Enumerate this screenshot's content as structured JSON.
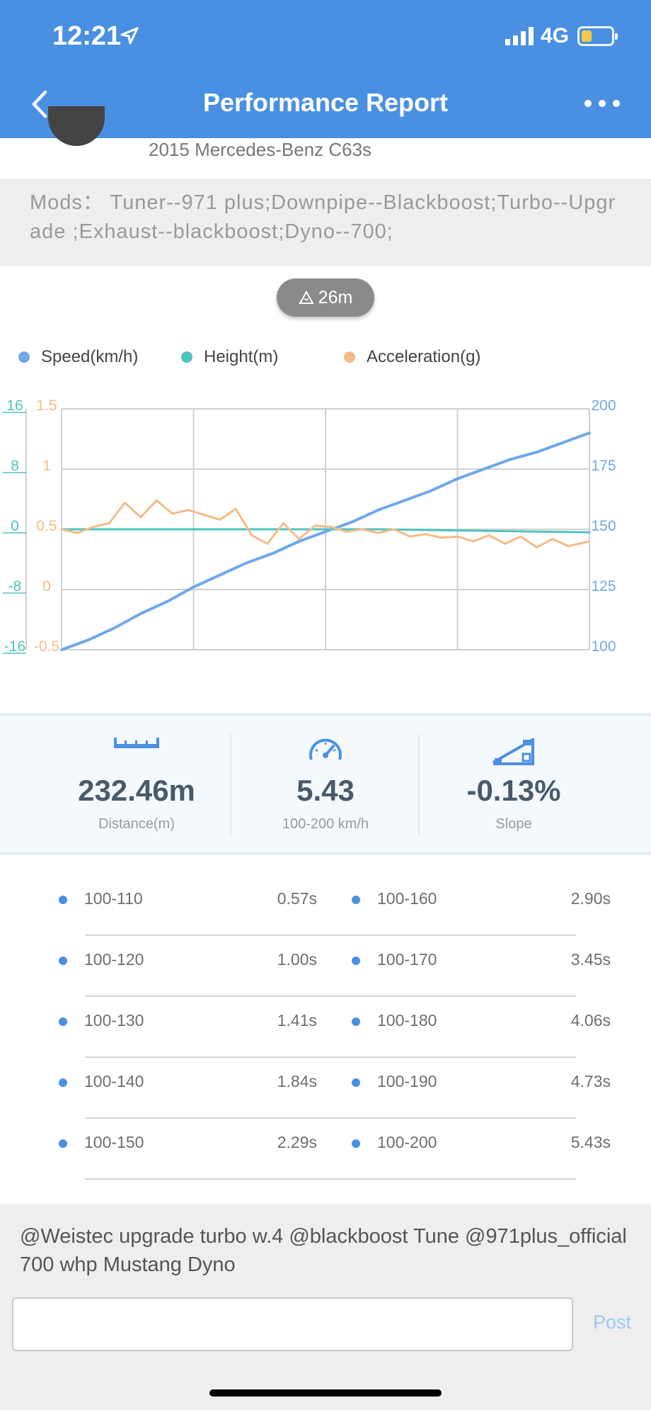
{
  "status": {
    "time": "12:21",
    "network": "4G"
  },
  "nav": {
    "title": "Performance Report"
  },
  "profile": {
    "car": "2015 Mercedes-Benz C63s"
  },
  "mods": {
    "text": "Mods：  Tuner--971 plus;Downpipe--Blackboost;Turbo--Upgrade ;Exhaust--blackboost;Dyno--700;"
  },
  "elevation": {
    "label": "26m"
  },
  "legend": [
    {
      "label": "Speed(km/h)",
      "color": "#6FA8E8"
    },
    {
      "label": "Height(m)",
      "color": "#4EC3C0"
    },
    {
      "label": "Acceleration(g)",
      "color": "#F5BB86"
    }
  ],
  "chart_data": {
    "type": "line",
    "axes": {
      "height_ticks": [
        "16",
        "8",
        "0",
        "-8",
        "-16"
      ],
      "height_range": [
        -16,
        16
      ],
      "accel_ticks": [
        "1.5",
        "1",
        "0.5",
        "0",
        "-0.5"
      ],
      "accel_range": [
        -0.5,
        1.5
      ],
      "speed_ticks": [
        "200",
        "175",
        "150",
        "125",
        "100"
      ],
      "speed_range": [
        100,
        200
      ]
    },
    "x_range": [
      0,
      100
    ],
    "grid": true,
    "series": [
      {
        "name": "Speed(km/h)",
        "axis": "speed",
        "color": "#6FA8E8",
        "x": [
          0,
          5,
          10,
          15,
          20,
          25,
          30,
          35,
          40,
          45,
          50,
          55,
          60,
          65,
          70,
          75,
          80,
          85,
          90,
          95,
          100
        ],
        "y": [
          100,
          104,
          109,
          115,
          120,
          126,
          131,
          136,
          140,
          145,
          149,
          153,
          158,
          162,
          166,
          171,
          175,
          179,
          182,
          186,
          190
        ]
      },
      {
        "name": "Height(m)",
        "axis": "height",
        "color": "#4EC3C0",
        "x": [
          0,
          10,
          20,
          30,
          40,
          50,
          60,
          70,
          80,
          90,
          100
        ],
        "y": [
          0,
          0,
          0,
          0,
          0,
          0,
          0,
          -0.1,
          -0.2,
          -0.3,
          -0.4
        ]
      },
      {
        "name": "Acceleration(g)",
        "axis": "accel",
        "color": "#F5BB86",
        "x": [
          0,
          3,
          6,
          9,
          12,
          15,
          18,
          21,
          24,
          27,
          30,
          33,
          36,
          39,
          42,
          45,
          48,
          51,
          54,
          57,
          60,
          63,
          66,
          69,
          72,
          75,
          78,
          81,
          84,
          87,
          90,
          93,
          96,
          100
        ],
        "y": [
          0.5,
          0.47,
          0.52,
          0.55,
          0.72,
          0.6,
          0.74,
          0.63,
          0.66,
          0.62,
          0.58,
          0.67,
          0.45,
          0.38,
          0.55,
          0.42,
          0.53,
          0.52,
          0.48,
          0.5,
          0.47,
          0.5,
          0.44,
          0.46,
          0.43,
          0.44,
          0.4,
          0.45,
          0.38,
          0.44,
          0.35,
          0.42,
          0.36,
          0.4
        ]
      }
    ]
  },
  "stats": [
    {
      "icon": "ruler-icon",
      "value": "232.46m",
      "label": "Distance(m)"
    },
    {
      "icon": "speedometer-icon",
      "value": "5.43",
      "label": "100-200 km/h"
    },
    {
      "icon": "slope-icon",
      "value": "-0.13%",
      "label": "Slope"
    }
  ],
  "splits": [
    {
      "range": "100-110",
      "time": "0.57s"
    },
    {
      "range": "100-120",
      "time": "1.00s"
    },
    {
      "range": "100-130",
      "time": "1.41s"
    },
    {
      "range": "100-140",
      "time": "1.84s"
    },
    {
      "range": "100-150",
      "time": "2.29s"
    },
    {
      "range": "100-160",
      "time": "2.90s"
    },
    {
      "range": "100-170",
      "time": "3.45s"
    },
    {
      "range": "100-180",
      "time": "4.06s"
    },
    {
      "range": "100-190",
      "time": "4.73s"
    },
    {
      "range": "100-200",
      "time": "5.43s"
    }
  ],
  "comment": {
    "text": "@Weistec upgrade turbo w.4 @blackboost Tune @971plus_official 700 whp Mustang Dyno",
    "input_value": "",
    "post_label": "Post"
  }
}
